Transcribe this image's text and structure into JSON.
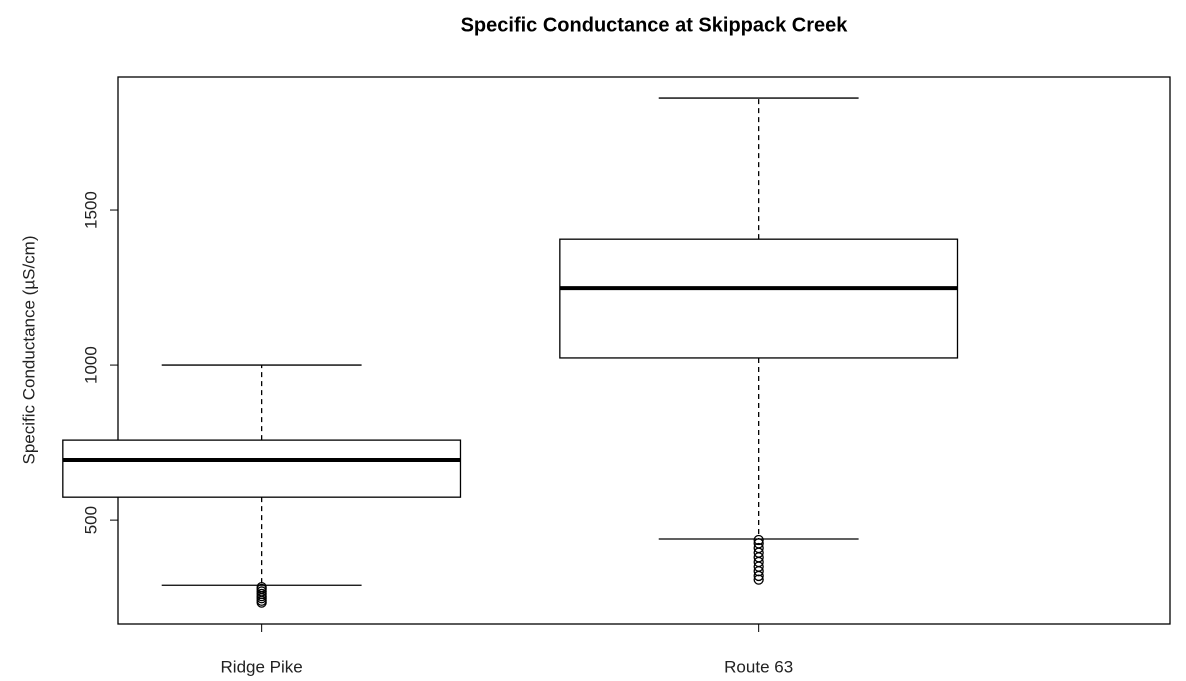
{
  "chart_data": {
    "type": "box",
    "title": "Specific Conductance at Skippack Creek",
    "ylabel": "Specific Conductance (µS/cm)",
    "categories": [
      "Ridge Pike",
      "Route 63"
    ],
    "boxes": [
      {
        "min": 290,
        "q1": 574,
        "median": 694,
        "q3": 758,
        "max": 1000,
        "outliers": [
          284,
          278,
          270,
          262,
          255,
          248,
          240,
          234
        ]
      },
      {
        "min": 439,
        "q1": 1023,
        "median": 1248,
        "q3": 1406,
        "max": 1861,
        "outliers": [
          436,
          425,
          410,
          395,
          380,
          365,
          350,
          335,
          320,
          308
        ]
      }
    ],
    "color": "#000000",
    "ylim": [
      165,
      1929
    ],
    "yticks": [
      500,
      1000,
      1500
    ]
  }
}
